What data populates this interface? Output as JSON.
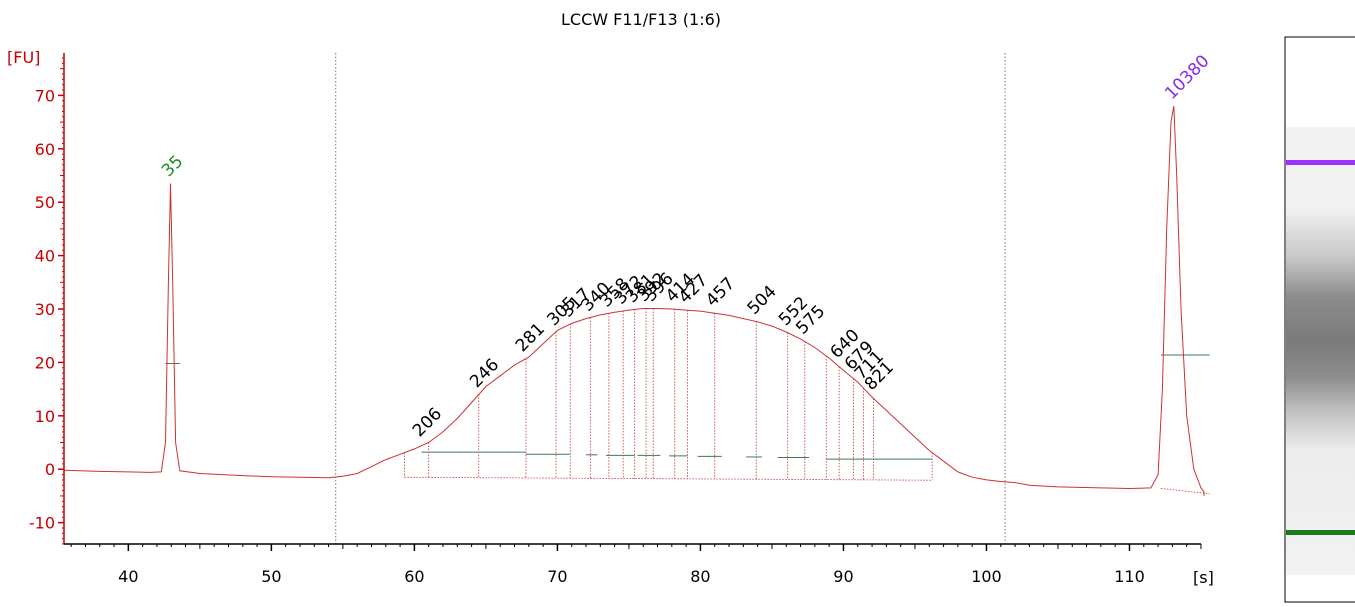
{
  "chart_data": {
    "type": "line",
    "title": "LCCW F11/F13 (1:6)",
    "ylabel": "[FU]",
    "xlabel": "[s]",
    "xlim": [
      35.5,
      115
    ],
    "ylim": [
      -14,
      77
    ],
    "x_ticks": [
      40,
      50,
      60,
      70,
      80,
      90,
      100,
      110
    ],
    "y_ticks": [
      -10,
      0,
      10,
      20,
      30,
      40,
      50,
      60,
      70
    ],
    "region_markers_x": [
      54.5,
      101.3
    ],
    "trace": {
      "color": "#cc3333",
      "points": [
        [
          35.5,
          -0.2
        ],
        [
          38,
          -0.4
        ],
        [
          40,
          -0.5
        ],
        [
          41.5,
          -0.6
        ],
        [
          42.3,
          -0.5
        ],
        [
          42.6,
          5
        ],
        [
          42.8,
          35
        ],
        [
          42.95,
          53.5
        ],
        [
          43.1,
          35
        ],
        [
          43.3,
          5
        ],
        [
          43.6,
          -0.3
        ],
        [
          45,
          -0.8
        ],
        [
          48,
          -1.2
        ],
        [
          50,
          -1.4
        ],
        [
          52,
          -1.5
        ],
        [
          54,
          -1.6
        ],
        [
          55,
          -1.3
        ],
        [
          56,
          -0.8
        ],
        [
          57,
          0.5
        ],
        [
          58,
          1.8
        ],
        [
          59,
          2.8
        ],
        [
          60,
          3.8
        ],
        [
          61,
          5.0
        ],
        [
          62,
          7.0
        ],
        [
          63,
          9.5
        ],
        [
          64,
          12.5
        ],
        [
          64.5,
          14
        ],
        [
          65,
          15.5
        ],
        [
          66,
          17.5
        ],
        [
          67,
          19.5
        ],
        [
          68,
          21.0
        ],
        [
          69,
          23.5
        ],
        [
          70,
          26.0
        ],
        [
          71,
          27.3
        ],
        [
          72,
          28.2
        ],
        [
          73,
          28.9
        ],
        [
          74,
          29.4
        ],
        [
          75,
          29.8
        ],
        [
          76,
          30.1
        ],
        [
          77,
          30.1
        ],
        [
          78,
          30.0
        ],
        [
          79,
          29.8
        ],
        [
          80,
          29.6
        ],
        [
          81,
          29.2
        ],
        [
          82,
          28.8
        ],
        [
          83,
          28.2
        ],
        [
          84,
          27.6
        ],
        [
          85,
          26.8
        ],
        [
          86,
          25.7
        ],
        [
          87,
          24.4
        ],
        [
          88,
          22.8
        ],
        [
          89,
          20.8
        ],
        [
          90,
          18.5
        ],
        [
          91,
          16.3
        ],
        [
          92,
          13.5
        ],
        [
          93,
          11.0
        ],
        [
          94,
          8.5
        ],
        [
          95,
          6.0
        ],
        [
          96,
          3.5
        ],
        [
          97,
          1.5
        ],
        [
          98,
          -0.5
        ],
        [
          99,
          -1.5
        ],
        [
          100,
          -2.0
        ],
        [
          101,
          -2.3
        ],
        [
          102,
          -2.5
        ],
        [
          103,
          -3.0
        ],
        [
          105,
          -3.3
        ],
        [
          108,
          -3.5
        ],
        [
          110,
          -3.6
        ],
        [
          111.5,
          -3.5
        ],
        [
          112,
          -1.0
        ],
        [
          112.3,
          15
        ],
        [
          112.6,
          45
        ],
        [
          112.9,
          65
        ],
        [
          113.1,
          68
        ],
        [
          113.3,
          55
        ],
        [
          113.6,
          30
        ],
        [
          114,
          10
        ],
        [
          114.5,
          0
        ],
        [
          115,
          -3.5
        ],
        [
          116,
          -4.2
        ],
        [
          118,
          -4.8
        ],
        [
          120,
          -5.0
        ]
      ]
    },
    "peaks": [
      {
        "label": "35",
        "x": 42.95,
        "y": 53.5,
        "color": "#228b22"
      },
      {
        "label": "206",
        "x": 60.5,
        "y": 4.8,
        "color": "#000000"
      },
      {
        "label": "246",
        "x": 64.5,
        "y": 14,
        "color": "#000000"
      },
      {
        "label": "281",
        "x": 67.7,
        "y": 20.7,
        "color": "#000000"
      },
      {
        "label": "305",
        "x": 69.9,
        "y": 25.6,
        "color": "#000000"
      },
      {
        "label": "317",
        "x": 70.9,
        "y": 27.2,
        "color": "#000000"
      },
      {
        "label": "340",
        "x": 72.3,
        "y": 28.3,
        "color": "#000000"
      },
      {
        "label": "358",
        "x": 73.6,
        "y": 29.1,
        "color": "#000000"
      },
      {
        "label": "372",
        "x": 74.6,
        "y": 29.6,
        "color": "#000000"
      },
      {
        "label": "381",
        "x": 75.4,
        "y": 29.9,
        "color": "#000000"
      },
      {
        "label": "392",
        "x": 76.2,
        "y": 30.1,
        "color": "#000000"
      },
      {
        "label": "396",
        "x": 76.7,
        "y": 30.1,
        "color": "#000000"
      },
      {
        "label": "414",
        "x": 78.2,
        "y": 30.0,
        "color": "#000000"
      },
      {
        "label": "427",
        "x": 79.1,
        "y": 29.8,
        "color": "#000000"
      },
      {
        "label": "457",
        "x": 81.0,
        "y": 29.2,
        "color": "#000000"
      },
      {
        "label": "504",
        "x": 83.9,
        "y": 27.7,
        "color": "#000000"
      },
      {
        "label": "552",
        "x": 86.1,
        "y": 25.6,
        "color": "#000000"
      },
      {
        "label": "575",
        "x": 87.3,
        "y": 24.0,
        "color": "#000000"
      },
      {
        "label": "640",
        "x": 89.7,
        "y": 19.5,
        "color": "#000000"
      },
      {
        "label": "679",
        "x": 90.7,
        "y": 17.3,
        "color": "#000000"
      },
      {
        "label": "711",
        "x": 91.4,
        "y": 15.5,
        "color": "#000000"
      },
      {
        "label": "821",
        "x": 92.1,
        "y": 13.5,
        "color": "#000000"
      },
      {
        "label": "10380",
        "x": 113.1,
        "y": 68.0,
        "color": "#8a2be2"
      }
    ],
    "peak_cut_lines_x": [
      59.3,
      61.0,
      64.5,
      67.8,
      69.9,
      70.9,
      72.3,
      73.6,
      74.6,
      75.4,
      76.2,
      76.7,
      78.2,
      79.1,
      81.0,
      83.9,
      86.1,
      87.3,
      88.8,
      89.7,
      90.7,
      91.4,
      92.1,
      96.2
    ],
    "baselines": [
      {
        "x1": 42.6,
        "x2": 43.6,
        "y": 19.8
      },
      {
        "x1": 60.5,
        "x2": 67.8,
        "y": 3.2
      },
      {
        "x1": 67.8,
        "x2": 70.9,
        "y": 2.8
      },
      {
        "x1": 72.0,
        "x2": 72.8,
        "y": 2.7
      },
      {
        "x1": 73.4,
        "x2": 75.4,
        "y": 2.6
      },
      {
        "x1": 75.6,
        "x2": 77.2,
        "y": 2.6
      },
      {
        "x1": 77.8,
        "x2": 79.1,
        "y": 2.5
      },
      {
        "x1": 79.8,
        "x2": 81.5,
        "y": 2.4
      },
      {
        "x1": 83.2,
        "x2": 84.3,
        "y": 2.3
      },
      {
        "x1": 85.4,
        "x2": 87.6,
        "y": 2.2
      },
      {
        "x1": 88.8,
        "x2": 96.2,
        "y": 1.9
      },
      {
        "x1": 112.2,
        "x2": 115.6,
        "y": 21.4
      }
    ],
    "gel": {
      "upper_marker_color": "#9b30ff",
      "lower_marker_color": "#1a7a1a",
      "background": "#f2f2f2"
    }
  }
}
